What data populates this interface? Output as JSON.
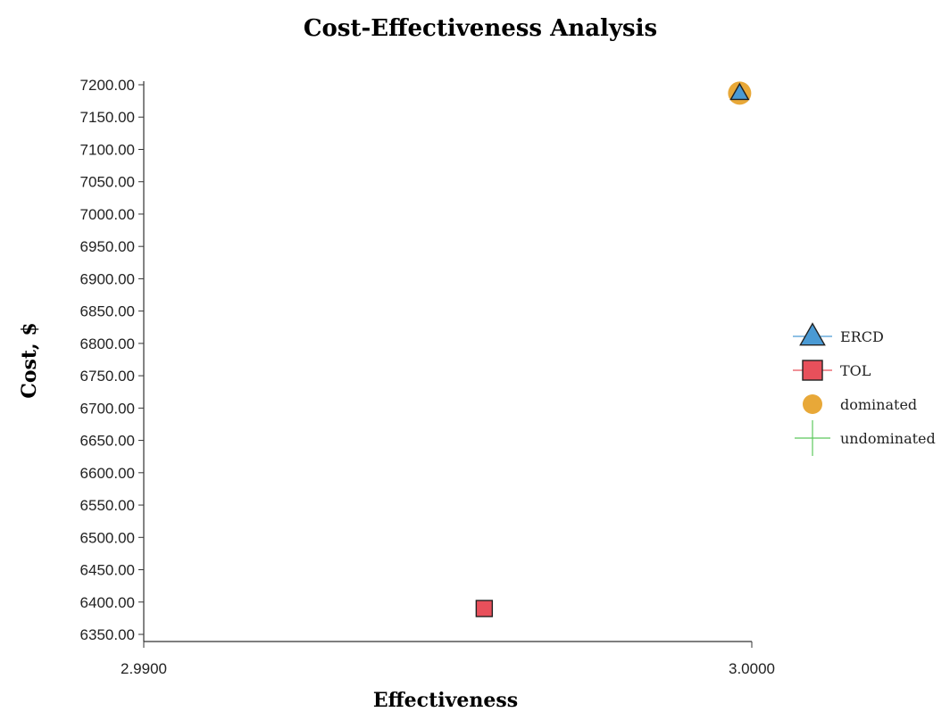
{
  "chart_data": {
    "type": "scatter",
    "title": "Cost-Effectiveness Analysis",
    "xlabel": "Effectiveness",
    "ylabel": "Cost, $",
    "xlim": [
      2.99,
      3.0
    ],
    "ylim": [
      6350,
      7200
    ],
    "x_ticks": [
      "2.9900",
      "3.0000"
    ],
    "y_ticks": [
      "6350.00",
      "6400.00",
      "6450.00",
      "6500.00",
      "6550.00",
      "6600.00",
      "6650.00",
      "6700.00",
      "6750.00",
      "6800.00",
      "6850.00",
      "6900.00",
      "6950.00",
      "7000.00",
      "7050.00",
      "7100.00",
      "7150.00",
      "7200.00"
    ],
    "series": [
      {
        "name": "ERCD",
        "marker": "triangle",
        "color": "#4a9ad4",
        "points": [
          {
            "x": 2.9998,
            "y": 7187
          }
        ]
      },
      {
        "name": "TOL",
        "marker": "square",
        "color": "#e8505b",
        "points": [
          {
            "x": 2.9956,
            "y": 6390
          }
        ]
      },
      {
        "name": "dominated",
        "marker": "circle",
        "color": "#e8a838",
        "points": [
          {
            "x": 2.9998,
            "y": 7187
          }
        ]
      },
      {
        "name": "undominated",
        "marker": "plus",
        "color": "#5cc85c",
        "points": []
      }
    ],
    "legend_position": "right",
    "grid": false
  }
}
